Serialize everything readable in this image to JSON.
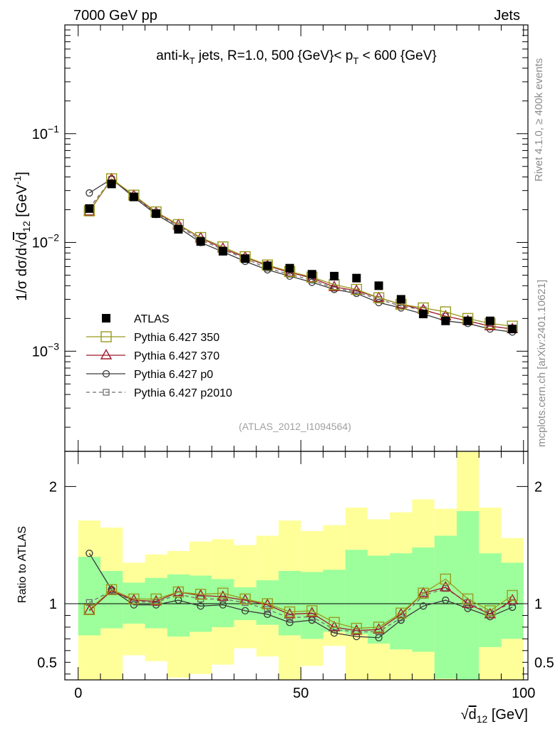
{
  "header": {
    "left": "7000 GeV pp",
    "right": "Jets"
  },
  "side_labels": {
    "rivet": "Rivet 4.1.0, ≥ 400k events",
    "mcplots": "mcplots.cern.ch [arXiv:2401.10621]"
  },
  "colors": {
    "atlas": "#000000",
    "p350": "#9a9a1e",
    "p370": "#a0182c",
    "p0": "#3a3a3a",
    "p2010": "#6e6e6e",
    "band_green": "#9cff9c",
    "band_yellow": "#ffff9a"
  },
  "chart_data": [
    {
      "type": "scatter",
      "panel": "main",
      "title": "anti-kT jets, R=1.0, 500 {GeV}< pT < 600 {GeV}",
      "title_parts": {
        "a": "anti-k",
        "a_sub": "T",
        "b": " jets, R=1.0, 500 {GeV}< p",
        "b_sub": "T",
        "c": " < 600 {GeV}"
      },
      "ylabel": "1/σ dσ/d√d12 [GeV⁻¹]",
      "ylabel_parts": {
        "pre": "1/σ dσ/d",
        "d": "d",
        "sub": "12",
        "unit": " [GeV",
        "exp": "-1",
        "close": "]"
      },
      "yscale": "log",
      "ylim": [
        0.00012,
        1.0
      ],
      "xlim": [
        -3,
        101
      ],
      "ytick_labels": [
        {
          "value": 0.1,
          "base": "10",
          "exp": "−1"
        },
        {
          "value": 0.01,
          "base": "10",
          "exp": "−2"
        },
        {
          "value": 0.001,
          "base": "10",
          "exp": "−3"
        }
      ],
      "watermark": "(ATLAS_2012_I1094564)",
      "x": [
        2.5,
        7.5,
        12.5,
        17.5,
        22.5,
        27.5,
        32.5,
        37.5,
        42.5,
        47.5,
        52.5,
        57.5,
        62.5,
        67.5,
        72.5,
        77.5,
        82.5,
        87.5,
        92.5,
        97.5
      ],
      "series": [
        {
          "key": "atlas",
          "name": "ATLAS",
          "marker": "filled-square",
          "values": [
            0.0205,
            0.0345,
            0.0262,
            0.0184,
            0.0132,
            0.0102,
            0.0083,
            0.0071,
            0.0061,
            0.0058,
            0.0051,
            0.0049,
            0.0047,
            0.004,
            0.003,
            0.0022,
            0.0019,
            0.0019,
            0.0019,
            0.0016
          ]
        },
        {
          "key": "p350",
          "name": "Pythia 6.427 350",
          "marker": "open-square",
          "values": [
            0.0195,
            0.0385,
            0.0272,
            0.0191,
            0.0146,
            0.0111,
            0.0091,
            0.0074,
            0.0062,
            0.0054,
            0.0048,
            0.0041,
            0.0037,
            0.0031,
            0.0027,
            0.0025,
            0.0023,
            0.002,
            0.0018,
            0.0017
          ]
        },
        {
          "key": "p370",
          "name": "Pythia 6.427 370",
          "marker": "open-triangle",
          "values": [
            0.0193,
            0.0383,
            0.027,
            0.0188,
            0.0145,
            0.011,
            0.0088,
            0.0073,
            0.0061,
            0.0053,
            0.0047,
            0.0039,
            0.0036,
            0.0031,
            0.0027,
            0.0024,
            0.0021,
            0.0019,
            0.0017,
            0.0016
          ]
        },
        {
          "key": "p0",
          "name": "Pythia 6.427 p0",
          "marker": "open-circle",
          "values": [
            0.0285,
            0.0383,
            0.026,
            0.0181,
            0.0137,
            0.01,
            0.0082,
            0.0067,
            0.0056,
            0.0049,
            0.0043,
            0.0037,
            0.0034,
            0.0028,
            0.0025,
            0.0022,
            0.0019,
            0.0018,
            0.0016,
            0.0015
          ]
        },
        {
          "key": "p2010",
          "name": "Pythia 6.427 p2010",
          "marker": "small-open-square",
          "dashed": true,
          "values": [
            0.0208,
            0.038,
            0.0268,
            0.0185,
            0.0142,
            0.0106,
            0.0086,
            0.0071,
            0.0058,
            0.0051,
            0.0045,
            0.0038,
            0.0035,
            0.003,
            0.0026,
            0.0024,
            0.0021,
            0.0019,
            0.0017,
            0.0016
          ]
        }
      ]
    },
    {
      "type": "line",
      "panel": "ratio",
      "ylabel": "Ratio to ATLAS",
      "ylim": [
        0.35,
        2.3
      ],
      "xlim": [
        -3,
        101
      ],
      "xlabel": "√d12 [GeV]",
      "xlabel_parts": {
        "d": "d",
        "sub": "12",
        "unit": " [GeV]"
      },
      "xtick_labels": [
        {
          "value": 0,
          "label": "0"
        },
        {
          "value": 50,
          "label": "50"
        },
        {
          "value": 100,
          "label": "100"
        }
      ],
      "ytick_labels": [
        {
          "value": 2,
          "label": "2"
        },
        {
          "value": 1,
          "label": "1"
        },
        {
          "value": 0.5,
          "label": "0.5"
        }
      ],
      "bin_edges": [
        0,
        5,
        10,
        15,
        20,
        25,
        30,
        35,
        40,
        45,
        50,
        55,
        60,
        65,
        70,
        75,
        80,
        85,
        90,
        95,
        100
      ],
      "band_1sigma": [
        [
          0.73,
          1.4
        ],
        [
          0.79,
          1.28
        ],
        [
          0.83,
          1.18
        ],
        [
          0.79,
          1.22
        ],
        [
          0.72,
          1.25
        ],
        [
          0.76,
          1.24
        ],
        [
          0.8,
          1.21
        ],
        [
          0.86,
          1.14
        ],
        [
          0.82,
          1.2
        ],
        [
          0.73,
          1.28
        ],
        [
          0.7,
          1.27
        ],
        [
          0.76,
          1.29
        ],
        [
          0.74,
          1.46
        ],
        [
          0.66,
          1.41
        ],
        [
          0.61,
          1.43
        ],
        [
          0.59,
          1.48
        ],
        [
          0.36,
          1.58
        ],
        [
          0.31,
          1.79
        ],
        [
          0.63,
          1.43
        ],
        [
          0.7,
          1.35
        ]
      ],
      "band_2sigma": [
        [
          0.3,
          1.71
        ],
        [
          0.31,
          1.65
        ],
        [
          0.56,
          1.35
        ],
        [
          0.51,
          1.42
        ],
        [
          0.37,
          1.45
        ],
        [
          0.4,
          1.53
        ],
        [
          0.48,
          1.55
        ],
        [
          0.62,
          1.5
        ],
        [
          0.55,
          1.58
        ],
        [
          0.33,
          1.71
        ],
        [
          0.47,
          1.62
        ],
        [
          0.64,
          1.67
        ],
        [
          0.33,
          1.82
        ],
        [
          0.33,
          1.72
        ],
        [
          0.31,
          1.78
        ],
        [
          0.33,
          1.89
        ],
        [
          0.33,
          1.81
        ],
        [
          0.0,
          2.3
        ],
        [
          0.33,
          1.82
        ],
        [
          0.33,
          1.56
        ]
      ],
      "series": [
        {
          "key": "p350",
          "name": "Pythia 6.427 350",
          "values": [
            0.95,
            1.12,
            1.04,
            1.04,
            1.1,
            1.08,
            1.09,
            1.04,
            1.0,
            0.93,
            0.94,
            0.84,
            0.79,
            0.8,
            0.92,
            1.09,
            1.21,
            1.04,
            0.94,
            1.07
          ]
        },
        {
          "key": "p370",
          "name": "Pythia 6.427 370",
          "values": [
            0.94,
            1.11,
            1.03,
            1.02,
            1.1,
            1.07,
            1.06,
            1.03,
            0.99,
            0.91,
            0.92,
            0.8,
            0.77,
            0.78,
            0.91,
            1.09,
            1.14,
            1.0,
            0.91,
            1.03
          ]
        },
        {
          "key": "p0",
          "name": "Pythia 6.427 p0",
          "values": [
            1.43,
            1.12,
            0.99,
            0.99,
            1.03,
            0.98,
            0.99,
            0.94,
            0.91,
            0.84,
            0.86,
            0.75,
            0.72,
            0.71,
            0.86,
            0.98,
            1.03,
            0.96,
            0.89,
            0.97
          ]
        },
        {
          "key": "p2010",
          "name": "Pythia 6.427 p2010",
          "values": [
            1.01,
            1.11,
            1.02,
            1.01,
            1.08,
            1.04,
            1.04,
            1.01,
            0.95,
            0.88,
            0.89,
            0.78,
            0.76,
            0.76,
            0.88,
            1.07,
            1.13,
            1.01,
            0.92,
            1.01
          ]
        }
      ]
    }
  ]
}
